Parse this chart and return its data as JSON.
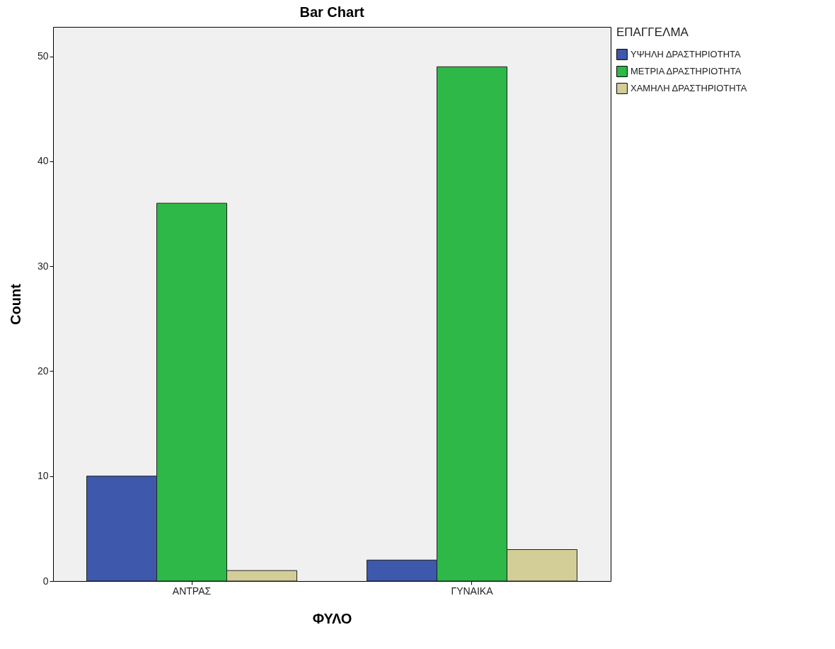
{
  "chart_data": {
    "type": "bar",
    "title": "Bar Chart",
    "xlabel": "ΦΥΛΟ",
    "ylabel": "Count",
    "legend_title": "ΕΠΑΓΓΕΛΜΑ",
    "categories": [
      "ΑΝΤΡΑΣ",
      "ΓΥΝΑΙΚΑ"
    ],
    "series": [
      {
        "name": "ΥΨΗΛΗ ΔΡΑΣΤΗΡΙΟΤΗΤΑ",
        "color": "#3e58ac",
        "values": [
          10,
          2
        ]
      },
      {
        "name": "ΜΕΤΡΙΑ ΔΡΑΣΤΗΡΙΟΤΗΤΑ",
        "color": "#2eb848",
        "values": [
          36,
          49
        ]
      },
      {
        "name": "ΧΑΜΗΛΗ ΔΡΑΣΤΗΡΙΟΤΗΤΑ",
        "color": "#d3ce97",
        "values": [
          1,
          3
        ]
      }
    ],
    "ylim": [
      0,
      52.8
    ],
    "yticks": [
      0,
      10,
      20,
      30,
      40,
      50
    ],
    "grid": false,
    "legend": "top right"
  }
}
